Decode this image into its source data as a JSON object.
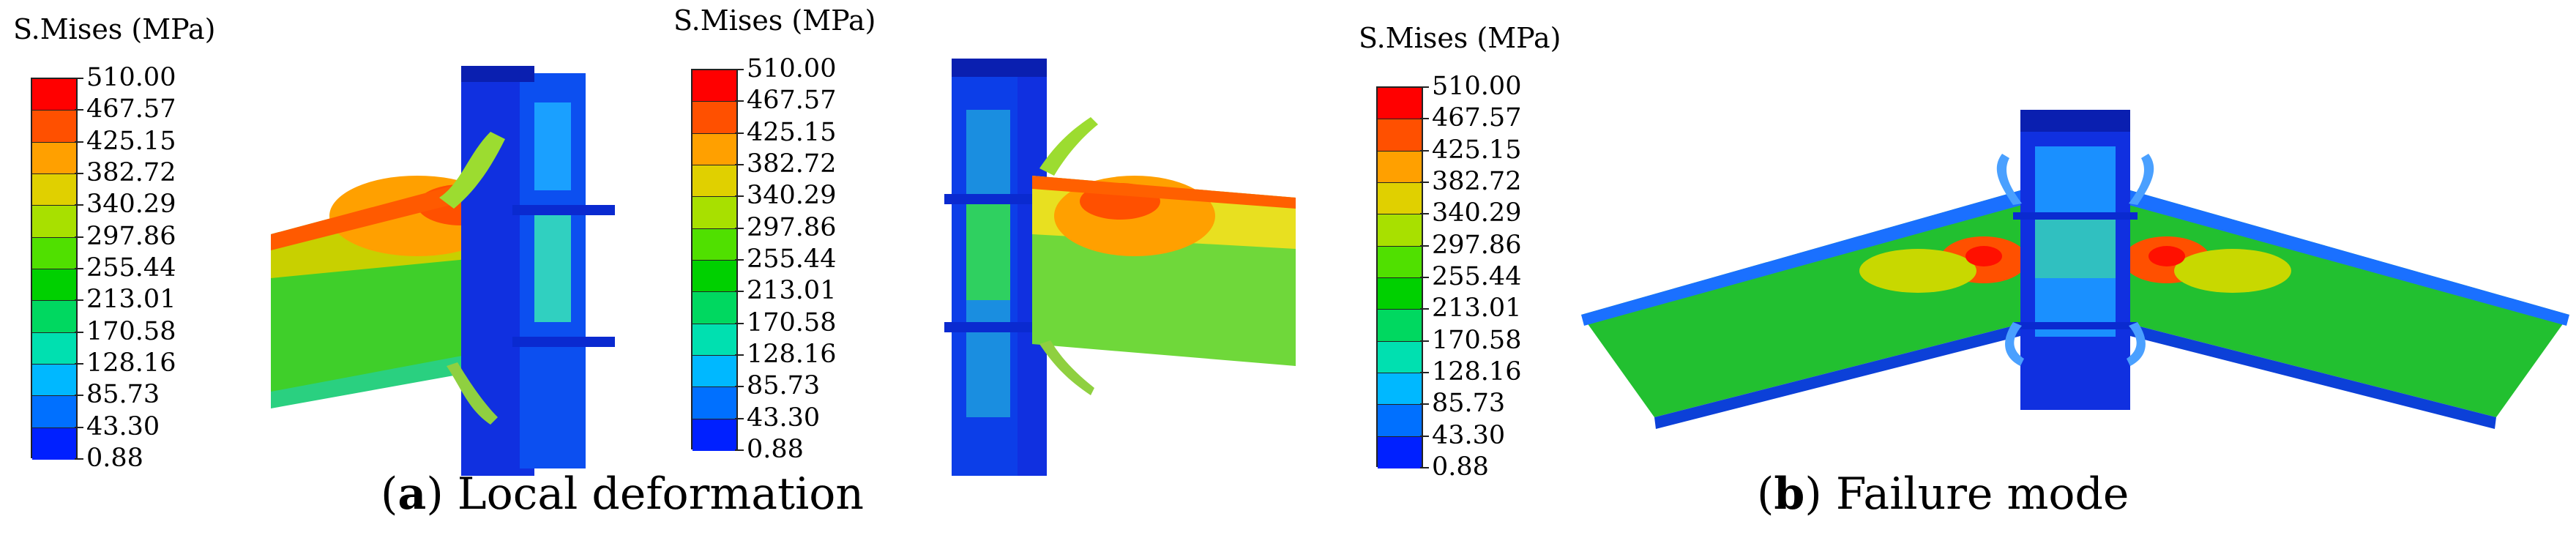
{
  "legend": {
    "title": "S.Mises (MPa)",
    "values": [
      "510.00",
      "467.57",
      "425.15",
      "382.72",
      "340.29",
      "297.86",
      "255.44",
      "213.01",
      "170.58",
      "128.16",
      "85.73",
      "43.30",
      "0.88"
    ],
    "colors": [
      "#ff0000",
      "#ff5000",
      "#ffa000",
      "#e0d000",
      "#a8e000",
      "#50e000",
      "#00d000",
      "#00d860",
      "#00e0b0",
      "#00b8ff",
      "#0070ff",
      "#0020ff"
    ]
  },
  "captions": {
    "a": {
      "letter": "a",
      "text": " Local deformation"
    },
    "b": {
      "letter": "b",
      "text": " Failure mode"
    }
  }
}
